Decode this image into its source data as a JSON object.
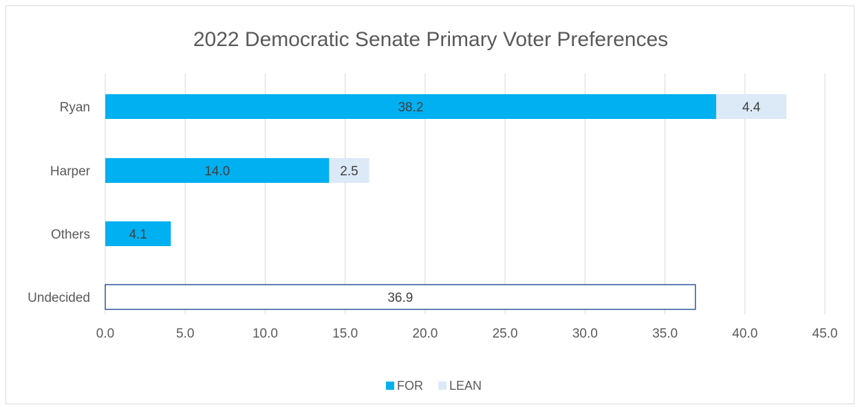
{
  "chart_data": {
    "type": "bar",
    "orientation": "horizontal",
    "stacked": true,
    "title": "2022 Democratic Senate Primary Voter Preferences",
    "categories": [
      "Ryan",
      "Harper",
      "Others",
      "Undecided"
    ],
    "series": [
      {
        "name": "FOR",
        "values": [
          38.2,
          14.0,
          4.1,
          36.9
        ],
        "color": "#00b0f0"
      },
      {
        "name": "LEAN",
        "values": [
          4.4,
          2.5,
          null,
          null
        ],
        "color": "#dce9f7"
      }
    ],
    "undecided_style": {
      "fill": "#ffffff",
      "stroke": "#2f5597"
    },
    "xlim": [
      0,
      45
    ],
    "xticks": [
      "0.0",
      "5.0",
      "10.0",
      "15.0",
      "20.0",
      "25.0",
      "30.0",
      "35.0",
      "40.0",
      "45.0"
    ],
    "grid": "vertical",
    "legend": "bottom-center"
  }
}
